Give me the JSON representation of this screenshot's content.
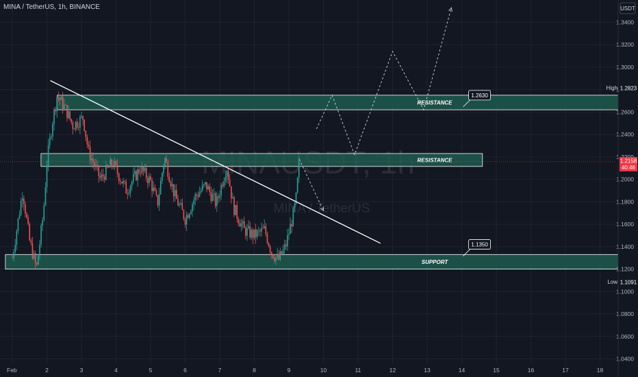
{
  "header": {
    "symbol": "MINA / TetherUS, 1h, BINANCE",
    "currency_button": "USDT"
  },
  "watermark": {
    "line1": "MINAUSDT, 1h",
    "line2": "MINA / TetherUS"
  },
  "price_tags": {
    "high_label": "High",
    "high_value": "1.2823",
    "low_label": "Low",
    "low_value": "1.1091",
    "current_value": "1.2158",
    "current_sub": "40:46",
    "current_color": "#f23645"
  },
  "colors": {
    "zone_fill": "#1e5a4d",
    "up": "#26a69a",
    "down": "#ef5350",
    "line": "#ffffff"
  },
  "chart_data": {
    "type": "candlestick",
    "title": "MINA / TetherUS, 1h, BINANCE",
    "ylim": [
      1.03,
      1.36
    ],
    "y_ticks": [
      "1.3400",
      "1.3200",
      "1.3000",
      "1.2800",
      "1.2600",
      "1.2400",
      "1.2200",
      "1.2000",
      "1.1800",
      "1.1600",
      "1.1400",
      "1.1200",
      "1.1000",
      "1.0800",
      "1.0600",
      "1.0400"
    ],
    "x_ticks": [
      "Feb",
      "2",
      "3",
      "4",
      "5",
      "6",
      "7",
      "8",
      "9",
      "10",
      "11",
      "12",
      "13",
      "14",
      "15",
      "16",
      "17",
      "18"
    ],
    "grid": true,
    "price_path": [
      {
        "t": 0.0,
        "p": 1.13
      },
      {
        "t": 0.3,
        "p": 1.19
      },
      {
        "t": 0.5,
        "p": 1.145
      },
      {
        "t": 0.7,
        "p": 1.12
      },
      {
        "t": 0.9,
        "p": 1.17
      },
      {
        "t": 1.0,
        "p": 1.215
      },
      {
        "t": 1.15,
        "p": 1.25
      },
      {
        "t": 1.3,
        "p": 1.275
      },
      {
        "t": 1.55,
        "p": 1.262
      },
      {
        "t": 1.75,
        "p": 1.248
      },
      {
        "t": 2.05,
        "p": 1.255
      },
      {
        "t": 2.2,
        "p": 1.225
      },
      {
        "t": 2.55,
        "p": 1.2
      },
      {
        "t": 2.9,
        "p": 1.215
      },
      {
        "t": 3.3,
        "p": 1.19
      },
      {
        "t": 3.7,
        "p": 1.21
      },
      {
        "t": 4.0,
        "p": 1.198
      },
      {
        "t": 4.2,
        "p": 1.178
      },
      {
        "t": 4.4,
        "p": 1.22
      },
      {
        "t": 4.7,
        "p": 1.185
      },
      {
        "t": 5.0,
        "p": 1.165
      },
      {
        "t": 5.3,
        "p": 1.185
      },
      {
        "t": 5.6,
        "p": 1.195
      },
      {
        "t": 5.9,
        "p": 1.178
      },
      {
        "t": 6.2,
        "p": 1.212
      },
      {
        "t": 6.4,
        "p": 1.175
      },
      {
        "t": 6.7,
        "p": 1.155
      },
      {
        "t": 7.0,
        "p": 1.15
      },
      {
        "t": 7.3,
        "p": 1.155
      },
      {
        "t": 7.5,
        "p": 1.135
      },
      {
        "t": 7.7,
        "p": 1.128
      },
      {
        "t": 7.9,
        "p": 1.14
      },
      {
        "t": 8.1,
        "p": 1.165
      },
      {
        "t": 8.2,
        "p": 1.18
      },
      {
        "t": 8.3,
        "p": 1.2158
      }
    ],
    "zones": [
      {
        "label": "RESISTANCE",
        "top": 1.275,
        "bottom": 1.262,
        "t_start": 1.3,
        "t_end": 18.6
      },
      {
        "label": "RESISTANCE",
        "top": 1.223,
        "bottom": 1.2115,
        "t_start": 0.83,
        "t_end": 13.6
      },
      {
        "label": "SUPPORT",
        "top": 1.133,
        "bottom": 1.12,
        "t_start": -0.2,
        "t_end": 18.6
      }
    ],
    "callouts": [
      {
        "text": "1.2630",
        "t": 13.2,
        "p": 1.275
      },
      {
        "text": "1.1350",
        "t": 13.2,
        "p": 1.142
      }
    ],
    "trendline": {
      "t1": 1.1,
      "p1": 1.288,
      "t2": 10.65,
      "p2": 1.143
    },
    "projection_up": [
      {
        "t": 8.8,
        "p": 1.245
      },
      {
        "t": 9.25,
        "p": 1.275
      },
      {
        "t": 9.9,
        "p": 1.222
      },
      {
        "t": 11.0,
        "p": 1.314
      },
      {
        "t": 11.9,
        "p": 1.262
      },
      {
        "t": 12.7,
        "p": 1.353
      }
    ],
    "projection_down": [
      {
        "t": 8.3,
        "p": 1.218
      },
      {
        "t": 9.0,
        "p": 1.172
      }
    ]
  }
}
